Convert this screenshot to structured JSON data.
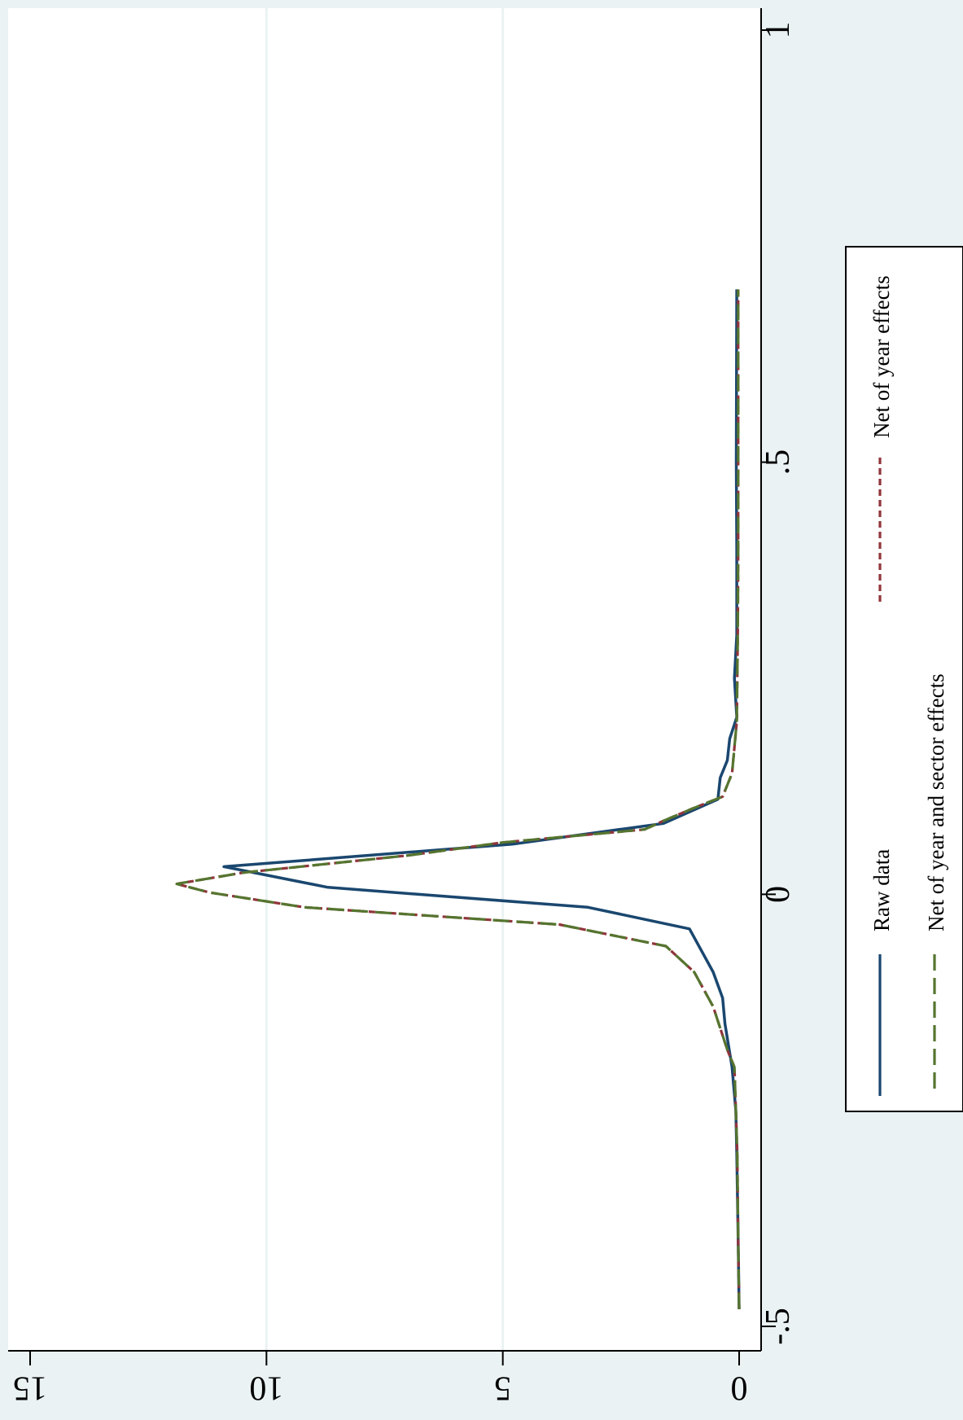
{
  "chart_data": {
    "type": "line",
    "title": "",
    "xlabel": "",
    "ylabel": "",
    "orientation": "rotated-90-clockwise",
    "xlim": [
      -0.5,
      1
    ],
    "ylim": [
      0,
      15
    ],
    "x_ticks": [
      -0.5,
      0,
      0.5,
      1
    ],
    "x_tick_labels": [
      "-.5",
      "0",
      ".5",
      "1"
    ],
    "y_ticks": [
      0,
      5,
      10,
      15
    ],
    "y_tick_labels": [
      "0",
      "5",
      "10",
      "15"
    ],
    "grid": true,
    "legend": {
      "placement": "bottom",
      "columns": 2
    },
    "series": [
      {
        "name": "Raw data",
        "color": "#1a476f",
        "style": "solid",
        "points": [
          [
            -0.48,
            0
          ],
          [
            -0.4,
            0.02
          ],
          [
            -0.3,
            0.05
          ],
          [
            -0.25,
            0.07
          ],
          [
            -0.2,
            0.15
          ],
          [
            -0.15,
            0.3
          ],
          [
            -0.12,
            0.35
          ],
          [
            -0.09,
            0.55
          ],
          [
            -0.04,
            1.05
          ],
          [
            -0.015,
            3.2
          ],
          [
            0.008,
            8.7
          ],
          [
            0.032,
            10.9
          ],
          [
            0.058,
            4.8
          ],
          [
            0.082,
            1.6
          ],
          [
            0.11,
            0.45
          ],
          [
            0.135,
            0.4
          ],
          [
            0.155,
            0.25
          ],
          [
            0.18,
            0.2
          ],
          [
            0.205,
            0.05
          ],
          [
            0.25,
            0.1
          ],
          [
            0.3,
            0.05
          ],
          [
            0.4,
            0.05
          ],
          [
            0.5,
            0.06
          ],
          [
            0.7,
            0.05
          ]
        ]
      },
      {
        "name": "Net of year effects",
        "color": "#90353b",
        "style": "short-dash",
        "points": [
          [
            -0.48,
            0
          ],
          [
            -0.4,
            0.02
          ],
          [
            -0.3,
            0.04
          ],
          [
            -0.2,
            0.1
          ],
          [
            -0.18,
            0.25
          ],
          [
            -0.13,
            0.55
          ],
          [
            -0.09,
            0.95
          ],
          [
            -0.06,
            1.55
          ],
          [
            -0.035,
            3.8
          ],
          [
            -0.015,
            9.2
          ],
          [
            0.002,
            11.2
          ],
          [
            0.012,
            11.9
          ],
          [
            0.025,
            10.5
          ],
          [
            0.045,
            7.0
          ],
          [
            0.06,
            5.0
          ],
          [
            0.075,
            2.0
          ],
          [
            0.085,
            1.6
          ],
          [
            0.1,
            0.95
          ],
          [
            0.113,
            0.35
          ],
          [
            0.14,
            0.15
          ],
          [
            0.2,
            0.05
          ],
          [
            0.3,
            0.03
          ],
          [
            0.4,
            0.02
          ],
          [
            0.5,
            0.02
          ],
          [
            0.7,
            0.02
          ]
        ]
      },
      {
        "name": "Net of year and sector effects",
        "color": "#55752f",
        "style": "long-dash",
        "points": [
          [
            -0.48,
            0
          ],
          [
            -0.4,
            0.02
          ],
          [
            -0.3,
            0.04
          ],
          [
            -0.2,
            0.1
          ],
          [
            -0.18,
            0.25
          ],
          [
            -0.13,
            0.55
          ],
          [
            -0.09,
            0.95
          ],
          [
            -0.06,
            1.55
          ],
          [
            -0.035,
            3.8
          ],
          [
            -0.015,
            9.2
          ],
          [
            0.002,
            11.2
          ],
          [
            0.012,
            11.9
          ],
          [
            0.025,
            10.5
          ],
          [
            0.045,
            7.0
          ],
          [
            0.06,
            5.0
          ],
          [
            0.075,
            2.0
          ],
          [
            0.085,
            1.6
          ],
          [
            0.1,
            0.95
          ],
          [
            0.113,
            0.35
          ],
          [
            0.14,
            0.15
          ],
          [
            0.2,
            0.05
          ],
          [
            0.3,
            0.03
          ],
          [
            0.4,
            0.02
          ],
          [
            0.5,
            0.02
          ],
          [
            0.7,
            0.02
          ]
        ]
      }
    ]
  }
}
